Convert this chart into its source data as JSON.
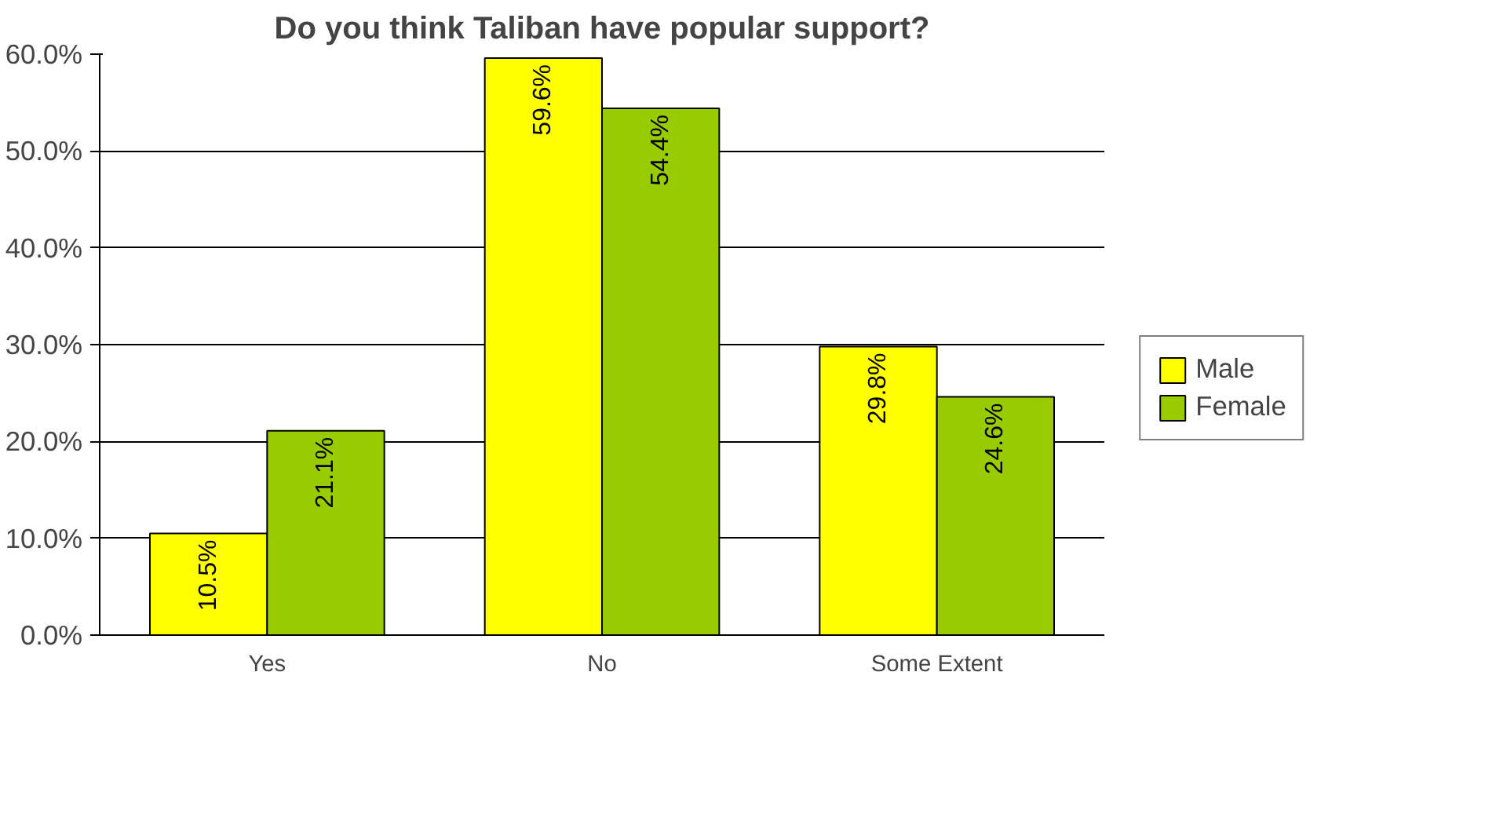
{
  "chart_data": {
    "type": "bar",
    "title": "Do you think Taliban have popular support?",
    "categories": [
      "Yes",
      "No",
      "Some Extent"
    ],
    "series": [
      {
        "name": "Male",
        "color": "#ffff00",
        "values": [
          10.5,
          59.6,
          29.8
        ]
      },
      {
        "name": "Female",
        "color": "#99cc00",
        "values": [
          21.1,
          54.4,
          24.6
        ]
      }
    ],
    "value_labels": [
      [
        "10.5%",
        "59.6%",
        "29.8%"
      ],
      [
        "21.1%",
        "54.4%",
        "24.6%"
      ]
    ],
    "ylim": [
      0,
      60
    ],
    "yticks": [
      {
        "value": 0,
        "label": "0.0%"
      },
      {
        "value": 10,
        "label": "10.0%"
      },
      {
        "value": 20,
        "label": "20.0%"
      },
      {
        "value": 30,
        "label": "30.0%"
      },
      {
        "value": 40,
        "label": "40.0%"
      },
      {
        "value": 50,
        "label": "50.0%"
      },
      {
        "value": 60,
        "label": "60.0%"
      }
    ],
    "grid": "y",
    "legend": "right"
  }
}
